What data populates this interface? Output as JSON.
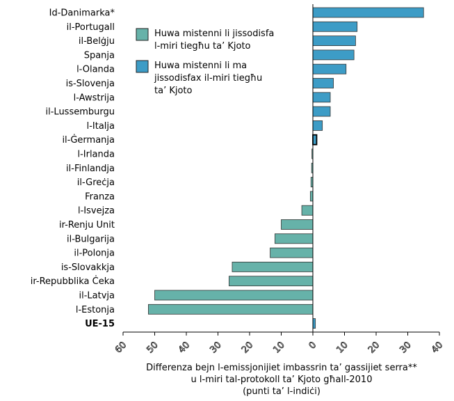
{
  "chart_data": {
    "type": "bar",
    "orientation": "horizontal",
    "categories": [
      "Id-Danimarka*",
      "il-Portugall",
      "il-Belġju",
      "Spanja",
      "l-Olanda",
      "is-Slovenja",
      "l-Awstrija",
      "il-Lussemburgu",
      "l-Italja",
      "il-Ġermanja",
      "l-Irlanda",
      "il-Finlandja",
      "il-Greċja",
      "Franza",
      "l-Isvejza",
      "ir-Renju Unit",
      "il-Bulgarija",
      "il-Polonja",
      "is-Slovakkja",
      "ir-Repubblika Ċeka",
      "il-Latvja",
      "l-Estonja",
      "UE-15"
    ],
    "bold_categories": [
      "UE-15"
    ],
    "values": [
      35,
      14,
      13.5,
      13,
      10.5,
      6.5,
      5.5,
      5.5,
      3,
      1.2,
      -0.3,
      -0.4,
      -0.6,
      -0.8,
      -3.5,
      -10,
      -12,
      -13.5,
      -25.5,
      -26.5,
      -50,
      -52,
      0.8
    ],
    "status": [
      "not_achieved",
      "not_achieved",
      "not_achieved",
      "not_achieved",
      "not_achieved",
      "not_achieved",
      "not_achieved",
      "not_achieved",
      "not_achieved",
      "not_achieved",
      "achieved",
      "achieved",
      "achieved",
      "achieved",
      "achieved",
      "achieved",
      "achieved",
      "achieved",
      "achieved",
      "achieved",
      "achieved",
      "achieved",
      "not_achieved"
    ],
    "highlighted": [
      "il-Ġermanja"
    ],
    "xlim": [
      -60,
      40
    ],
    "x_ticks": [
      -60,
      -50,
      -40,
      -30,
      -20,
      -10,
      0,
      10,
      20,
      30,
      40
    ],
    "x_tick_labels": [
      "60",
      "50",
      "40",
      "30",
      "20",
      "10",
      "0",
      "10",
      "20",
      "30",
      "40"
    ],
    "xlabel_lines": [
      "Differenza bejn l-emissjonijiet imbassrin ta’ gassijiet serra**",
      "u l-miri tal-protokoll ta’ Kjoto għall-2010",
      "(punti ta’ l-indiċi)"
    ],
    "legend": [
      {
        "key": "achieved",
        "lines": [
          "Huwa mistenni li jissodisfa",
          "l-miri tiegħu ta’ Kjoto"
        ]
      },
      {
        "key": "not_achieved",
        "lines": [
          "Huwa mistenni li ma",
          "jissodisfax il-miri tiegħu",
          "ta’ Kjoto"
        ]
      }
    ],
    "legend_placement": "top-left",
    "colors": {
      "achieved": "#66b2a9",
      "not_achieved": "#3d9cc6",
      "edge": "#333333"
    },
    "grid": false
  }
}
